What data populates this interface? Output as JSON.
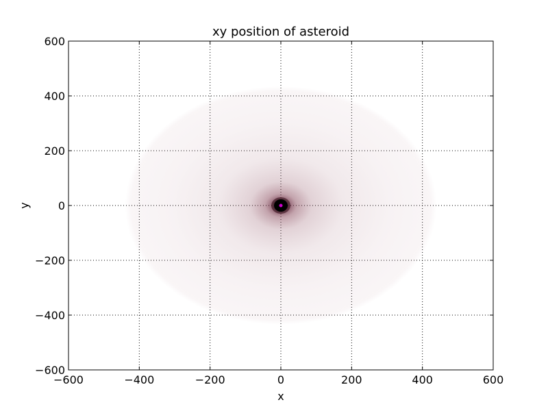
{
  "chart_data": {
    "type": "scatter",
    "title": "xy position of asteroid",
    "xlabel": "x",
    "ylabel": "y",
    "xlim": [
      -600,
      600
    ],
    "ylim": [
      -600,
      600
    ],
    "xticks": [
      -600,
      -400,
      -200,
      0,
      200,
      400,
      600
    ],
    "yticks": [
      -600,
      -400,
      -200,
      0,
      200,
      400,
      600
    ],
    "xtick_labels": [
      "−600",
      "−400",
      "−200",
      "0",
      "200",
      "400",
      "600"
    ],
    "ytick_labels": [
      "−600",
      "−400",
      "−200",
      "0",
      "200",
      "400",
      "600"
    ],
    "grid": true,
    "grid_style": "dotted",
    "series": [
      {
        "center": [
          0,
          0
        ],
        "x_extent": [
          -440,
          440
        ],
        "y_extent": [
          -435,
          435
        ],
        "color": "#5a0f28",
        "core_color": "#000000"
      }
    ],
    "marker": {
      "x": 0,
      "y": 0,
      "color": "#cc00cc"
    }
  }
}
